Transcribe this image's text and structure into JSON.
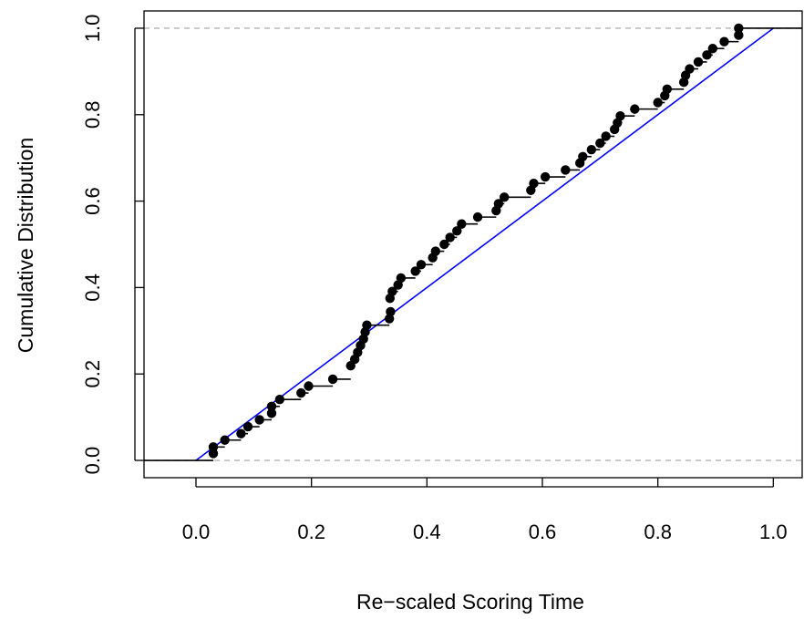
{
  "chart_data": {
    "type": "scatter",
    "title": "",
    "xlabel": "Re−scaled Scoring Time",
    "ylabel": "Cumulative Distribution",
    "xlim": [
      -0.09,
      1.05
    ],
    "ylim": [
      -0.04,
      1.04
    ],
    "x_ticks": [
      "0.0",
      "0.2",
      "0.4",
      "0.6",
      "0.8",
      "1.0"
    ],
    "y_ticks": [
      "0.0",
      "0.2",
      "0.4",
      "0.6",
      "0.8",
      "1.0"
    ],
    "grid": false,
    "legend": "none",
    "reference_lines": {
      "horizontal_dashed": [
        0,
        1
      ],
      "dashed_color": "#bebebe",
      "uniform_cdf_color": "#0000ff",
      "uniform_cdf": [
        [
          0,
          0
        ],
        [
          1,
          1
        ]
      ]
    },
    "ecdf_step_color": "#000000",
    "point_color": "#000000",
    "points": [
      [
        0.03,
        0.016
      ],
      [
        0.03,
        0.031
      ],
      [
        0.05,
        0.047
      ],
      [
        0.078,
        0.062
      ],
      [
        0.09,
        0.078
      ],
      [
        0.11,
        0.094
      ],
      [
        0.131,
        0.109
      ],
      [
        0.131,
        0.125
      ],
      [
        0.145,
        0.141
      ],
      [
        0.182,
        0.156
      ],
      [
        0.195,
        0.172
      ],
      [
        0.237,
        0.188
      ],
      [
        0.268,
        0.219
      ],
      [
        0.275,
        0.234
      ],
      [
        0.28,
        0.25
      ],
      [
        0.285,
        0.266
      ],
      [
        0.29,
        0.281
      ],
      [
        0.293,
        0.297
      ],
      [
        0.296,
        0.313
      ],
      [
        0.335,
        0.328
      ],
      [
        0.337,
        0.344
      ],
      [
        0.336,
        0.375
      ],
      [
        0.34,
        0.391
      ],
      [
        0.35,
        0.406
      ],
      [
        0.355,
        0.422
      ],
      [
        0.38,
        0.438
      ],
      [
        0.39,
        0.453
      ],
      [
        0.41,
        0.469
      ],
      [
        0.415,
        0.484
      ],
      [
        0.43,
        0.5
      ],
      [
        0.44,
        0.516
      ],
      [
        0.452,
        0.531
      ],
      [
        0.46,
        0.547
      ],
      [
        0.488,
        0.563
      ],
      [
        0.52,
        0.578
      ],
      [
        0.524,
        0.594
      ],
      [
        0.534,
        0.609
      ],
      [
        0.58,
        0.625
      ],
      [
        0.585,
        0.641
      ],
      [
        0.605,
        0.656
      ],
      [
        0.64,
        0.672
      ],
      [
        0.665,
        0.688
      ],
      [
        0.67,
        0.703
      ],
      [
        0.685,
        0.719
      ],
      [
        0.7,
        0.734
      ],
      [
        0.71,
        0.75
      ],
      [
        0.725,
        0.766
      ],
      [
        0.73,
        0.781
      ],
      [
        0.735,
        0.797
      ],
      [
        0.76,
        0.813
      ],
      [
        0.8,
        0.828
      ],
      [
        0.812,
        0.844
      ],
      [
        0.816,
        0.859
      ],
      [
        0.845,
        0.875
      ],
      [
        0.848,
        0.891
      ],
      [
        0.855,
        0.906
      ],
      [
        0.87,
        0.922
      ],
      [
        0.885,
        0.938
      ],
      [
        0.895,
        0.953
      ],
      [
        0.915,
        0.969
      ],
      [
        0.94,
        0.984
      ],
      [
        0.94,
        1.0
      ]
    ]
  }
}
